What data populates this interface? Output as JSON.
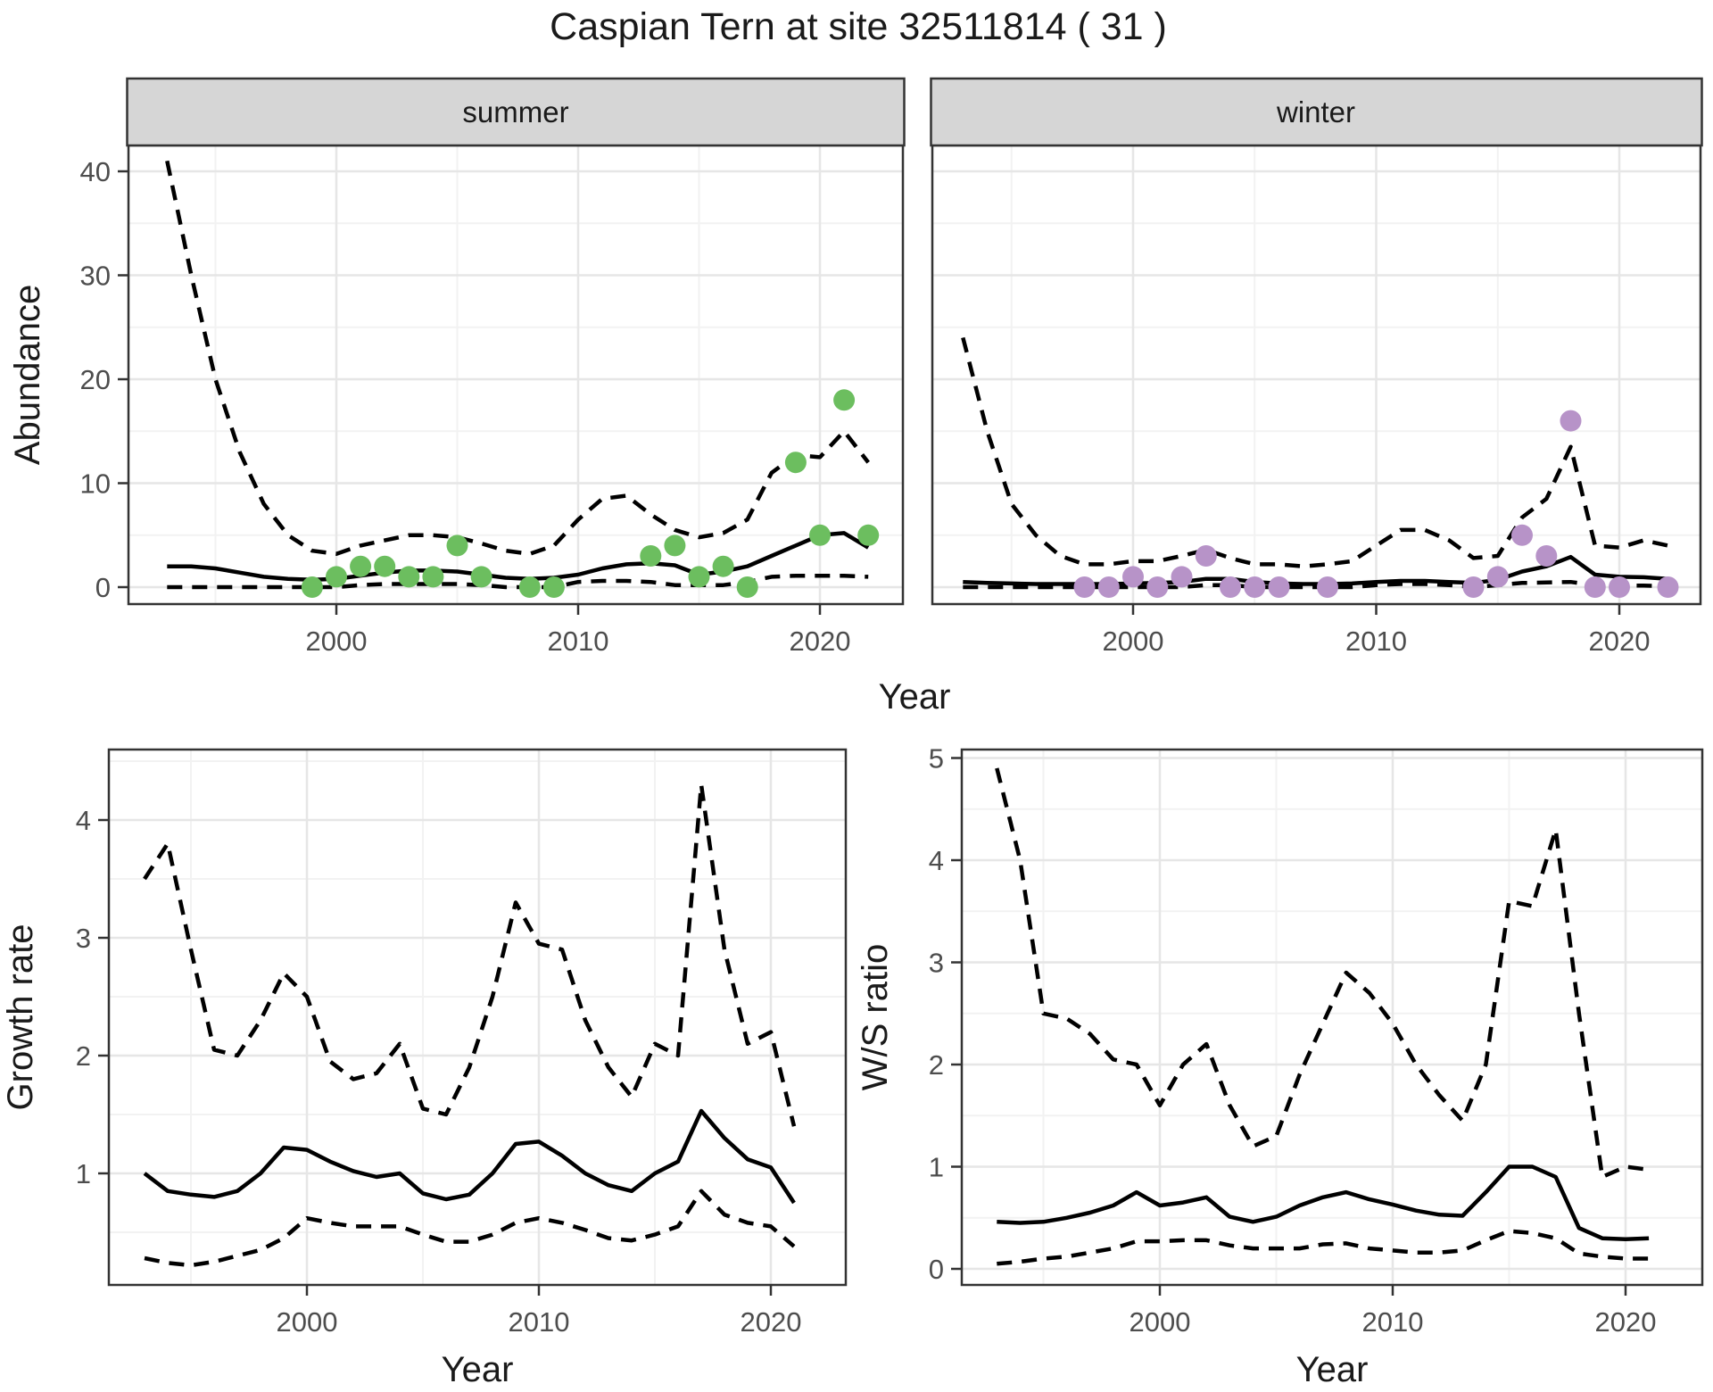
{
  "title": "Caspian Tern at site 32511814 ( 31 )",
  "axis_labels": {
    "abundance": "Abundance",
    "growth_rate": "Growth rate",
    "ws_ratio": "W/S ratio",
    "year": "Year"
  },
  "facets": {
    "summer": "summer",
    "winter": "winter"
  },
  "colors": {
    "summer_points": "#6cbe5f",
    "winter_points": "#b793c8",
    "line": "#000000",
    "grid_major": "#e6e6e6",
    "grid_minor": "#f2f2f2",
    "strip_bg": "#d6d6d6",
    "panel_border": "#333333",
    "axis_text": "#4d4d4d",
    "title_text": "#1a1a1a"
  },
  "chart_data": [
    {
      "id": "abundance-summer",
      "type": "line",
      "facet_label": "summer",
      "title": "Caspian Tern at site 32511814 ( 31 )",
      "xlabel": "Year",
      "ylabel": "Abundance",
      "xlim": [
        1991.4,
        2023.4
      ],
      "ylim": [
        -1.8,
        44.2
      ],
      "xticks": [
        2000,
        2010,
        2020
      ],
      "xticks_minor": [
        1995,
        2005,
        2015
      ],
      "yticks": [
        0,
        10,
        20,
        30,
        40
      ],
      "yticks_minor": [
        5,
        15,
        25,
        35
      ],
      "grid": true,
      "legend": "none",
      "x": [
        1993,
        1994,
        1995,
        1996,
        1997,
        1998,
        1999,
        2000,
        2001,
        2002,
        2003,
        2004,
        2005,
        2006,
        2007,
        2008,
        2009,
        2010,
        2011,
        2012,
        2013,
        2014,
        2015,
        2016,
        2017,
        2018,
        2019,
        2020,
        2021,
        2022
      ],
      "series": [
        {
          "name": "median",
          "style": "solid",
          "values": [
            2.0,
            2.0,
            1.8,
            1.4,
            1.0,
            0.8,
            0.7,
            0.8,
            1.1,
            1.4,
            1.6,
            1.6,
            1.5,
            1.2,
            0.9,
            0.8,
            0.9,
            1.2,
            1.8,
            2.2,
            2.3,
            2.1,
            1.2,
            1.5,
            2.0,
            3.0,
            4.0,
            5.0,
            5.2,
            3.8
          ]
        },
        {
          "name": "upper_ci",
          "style": "dashed",
          "values": [
            41,
            30,
            20,
            13,
            8,
            5,
            3.5,
            3.2,
            4.0,
            4.5,
            5.0,
            5.0,
            4.8,
            4.2,
            3.5,
            3.2,
            4.0,
            6.5,
            8.5,
            8.8,
            7.0,
            5.5,
            4.8,
            5.2,
            6.5,
            11,
            12.7,
            12.5,
            15,
            12
          ]
        },
        {
          "name": "lower_ci",
          "style": "dashed",
          "values": [
            0,
            0,
            0,
            0,
            0,
            0,
            0,
            0,
            0.2,
            0.3,
            0.3,
            0.3,
            0.3,
            0.2,
            0,
            0,
            0,
            0.5,
            0.6,
            0.6,
            0.5,
            0.2,
            0.2,
            0.2,
            0.5,
            1.0,
            1.1,
            1.1,
            1.1,
            1.0
          ]
        }
      ],
      "points": {
        "name": "observed-counts-summer",
        "color_key": "summer_points",
        "x": [
          1999,
          2000,
          2001,
          2002,
          2003,
          2004,
          2005,
          2006,
          2008,
          2009,
          2013,
          2014,
          2015,
          2016,
          2017,
          2019,
          2020,
          2021,
          2022
        ],
        "y": [
          0,
          1,
          2,
          2,
          1,
          1,
          4,
          1,
          0,
          0,
          3,
          4,
          1,
          2,
          0,
          12,
          5,
          18,
          5
        ]
      }
    },
    {
      "id": "abundance-winter",
      "type": "line",
      "facet_label": "winter",
      "xlabel": "Year",
      "ylabel": "",
      "xlim": [
        1991.6,
        2023.4
      ],
      "ylim": [
        -1.8,
        44.2
      ],
      "xticks": [
        2000,
        2010,
        2020
      ],
      "xticks_minor": [
        1995,
        2005,
        2015
      ],
      "yticks": [
        0,
        10,
        20,
        30,
        40
      ],
      "yticks_minor": [
        5,
        15,
        25,
        35
      ],
      "show_y_labels": false,
      "grid": true,
      "legend": "none",
      "x": [
        1993,
        1994,
        1995,
        1996,
        1997,
        1998,
        1999,
        2000,
        2001,
        2002,
        2003,
        2004,
        2005,
        2006,
        2007,
        2008,
        2009,
        2010,
        2011,
        2012,
        2013,
        2014,
        2015,
        2016,
        2017,
        2018,
        2019,
        2020,
        2021,
        2022
      ],
      "series": [
        {
          "name": "median",
          "style": "solid",
          "values": [
            0.5,
            0.4,
            0.35,
            0.3,
            0.3,
            0.3,
            0.3,
            0.35,
            0.4,
            0.5,
            0.8,
            0.8,
            0.5,
            0.35,
            0.3,
            0.3,
            0.35,
            0.5,
            0.6,
            0.6,
            0.5,
            0.4,
            0.7,
            1.5,
            2.0,
            2.9,
            1.2,
            1.0,
            0.95,
            0.8
          ]
        },
        {
          "name": "upper_ci",
          "style": "dashed",
          "values": [
            24,
            15,
            8,
            5,
            3,
            2.2,
            2.2,
            2.5,
            2.5,
            3,
            3.6,
            2.8,
            2.2,
            2.2,
            2.0,
            2.2,
            2.5,
            4.0,
            5.5,
            5.5,
            4.5,
            2.8,
            3.0,
            6.7,
            8.5,
            13.5,
            4.0,
            3.8,
            4.5,
            4.0
          ]
        },
        {
          "name": "lower_ci",
          "style": "dashed",
          "values": [
            0,
            0,
            0,
            0,
            0,
            0,
            0,
            0,
            0,
            0,
            0.2,
            0.2,
            0,
            0,
            0,
            0,
            0,
            0.2,
            0.3,
            0.3,
            0.2,
            0,
            0.2,
            0.4,
            0.45,
            0.5,
            0.2,
            0.15,
            0.15,
            0.1
          ]
        }
      ],
      "points": {
        "name": "observed-counts-winter",
        "color_key": "winter_points",
        "x": [
          1998,
          1999,
          2000,
          2001,
          2002,
          2003,
          2004,
          2005,
          2006,
          2008,
          2014,
          2015,
          2016,
          2017,
          2018,
          2019,
          2020,
          2022
        ],
        "y": [
          0,
          0,
          1,
          0,
          1,
          3,
          0,
          0,
          0,
          0,
          0,
          1,
          5,
          3,
          16,
          0,
          0,
          0
        ]
      }
    },
    {
      "id": "growth-rate",
      "type": "line",
      "xlabel": "Year",
      "ylabel": "Growth rate",
      "xlim": [
        1991.5,
        2023.2
      ],
      "ylim": [
        0.05,
        4.6
      ],
      "xticks": [
        2000,
        2010,
        2020
      ],
      "xticks_minor": [
        1995,
        2005,
        2015
      ],
      "yticks": [
        1,
        2,
        3,
        4
      ],
      "yticks_minor": [
        0.5,
        1.5,
        2.5,
        3.5,
        4.5
      ],
      "grid": true,
      "legend": "none",
      "x": [
        1993,
        1994,
        1995,
        1996,
        1997,
        1998,
        1999,
        2000,
        2001,
        2002,
        2003,
        2004,
        2005,
        2006,
        2007,
        2008,
        2009,
        2010,
        2011,
        2012,
        2013,
        2014,
        2015,
        2016,
        2017,
        2018,
        2019,
        2020,
        2021
      ],
      "series": [
        {
          "name": "median",
          "style": "solid",
          "values": [
            1.0,
            0.85,
            0.82,
            0.8,
            0.85,
            1.0,
            1.22,
            1.2,
            1.1,
            1.02,
            0.97,
            1.0,
            0.83,
            0.78,
            0.82,
            1.0,
            1.25,
            1.27,
            1.15,
            1.0,
            0.9,
            0.85,
            1.0,
            1.1,
            1.53,
            1.3,
            1.12,
            1.05,
            0.75
          ]
        },
        {
          "name": "upper_ci",
          "style": "dashed",
          "values": [
            3.5,
            3.8,
            2.9,
            2.05,
            2.0,
            2.3,
            2.7,
            2.5,
            1.95,
            1.8,
            1.85,
            2.1,
            1.55,
            1.5,
            1.9,
            2.5,
            3.3,
            2.95,
            2.9,
            2.3,
            1.9,
            1.65,
            2.1,
            2.0,
            4.3,
            2.9,
            2.1,
            2.2,
            1.4
          ]
        },
        {
          "name": "lower_ci",
          "style": "dashed",
          "values": [
            0.28,
            0.24,
            0.22,
            0.25,
            0.3,
            0.35,
            0.45,
            0.62,
            0.58,
            0.55,
            0.55,
            0.55,
            0.48,
            0.42,
            0.42,
            0.48,
            0.58,
            0.62,
            0.58,
            0.52,
            0.45,
            0.43,
            0.48,
            0.55,
            0.85,
            0.65,
            0.58,
            0.55,
            0.38
          ]
        }
      ]
    },
    {
      "id": "ws-ratio",
      "type": "line",
      "xlabel": "Year",
      "ylabel": "W/S ratio",
      "xlim": [
        1991.5,
        2023.2
      ],
      "ylim": [
        -0.15,
        5.1
      ],
      "xticks": [
        2000,
        2010,
        2020
      ],
      "xticks_minor": [
        1995,
        2005,
        2015
      ],
      "yticks": [
        0,
        1,
        2,
        3,
        4,
        5
      ],
      "yticks_minor": [
        0.5,
        1.5,
        2.5,
        3.5,
        4.5
      ],
      "grid": true,
      "legend": "none",
      "x": [
        1993,
        1994,
        1995,
        1996,
        1997,
        1998,
        1999,
        2000,
        2001,
        2002,
        2003,
        2004,
        2005,
        2006,
        2007,
        2008,
        2009,
        2010,
        2011,
        2012,
        2013,
        2014,
        2015,
        2016,
        2017,
        2018,
        2019,
        2020,
        2021
      ],
      "series": [
        {
          "name": "median",
          "style": "solid",
          "values": [
            0.46,
            0.45,
            0.46,
            0.5,
            0.55,
            0.62,
            0.75,
            0.62,
            0.65,
            0.7,
            0.51,
            0.46,
            0.51,
            0.62,
            0.7,
            0.75,
            0.68,
            0.63,
            0.57,
            0.53,
            0.52,
            0.75,
            1.0,
            1.0,
            0.9,
            0.4,
            0.3,
            0.29,
            0.3
          ]
        },
        {
          "name": "upper_ci",
          "style": "dashed",
          "values": [
            4.9,
            4.0,
            2.5,
            2.45,
            2.3,
            2.05,
            2.0,
            1.6,
            2.0,
            2.2,
            1.6,
            1.2,
            1.3,
            1.9,
            2.4,
            2.9,
            2.7,
            2.4,
            2.0,
            1.7,
            1.45,
            2.0,
            3.6,
            3.55,
            4.3,
            2.5,
            0.9,
            1.0,
            0.97
          ]
        },
        {
          "name": "lower_ci",
          "style": "dashed",
          "values": [
            0.05,
            0.07,
            0.1,
            0.12,
            0.16,
            0.2,
            0.27,
            0.27,
            0.28,
            0.28,
            0.23,
            0.2,
            0.2,
            0.2,
            0.24,
            0.25,
            0.2,
            0.18,
            0.16,
            0.16,
            0.18,
            0.28,
            0.37,
            0.35,
            0.3,
            0.15,
            0.12,
            0.1,
            0.1
          ]
        }
      ]
    }
  ]
}
